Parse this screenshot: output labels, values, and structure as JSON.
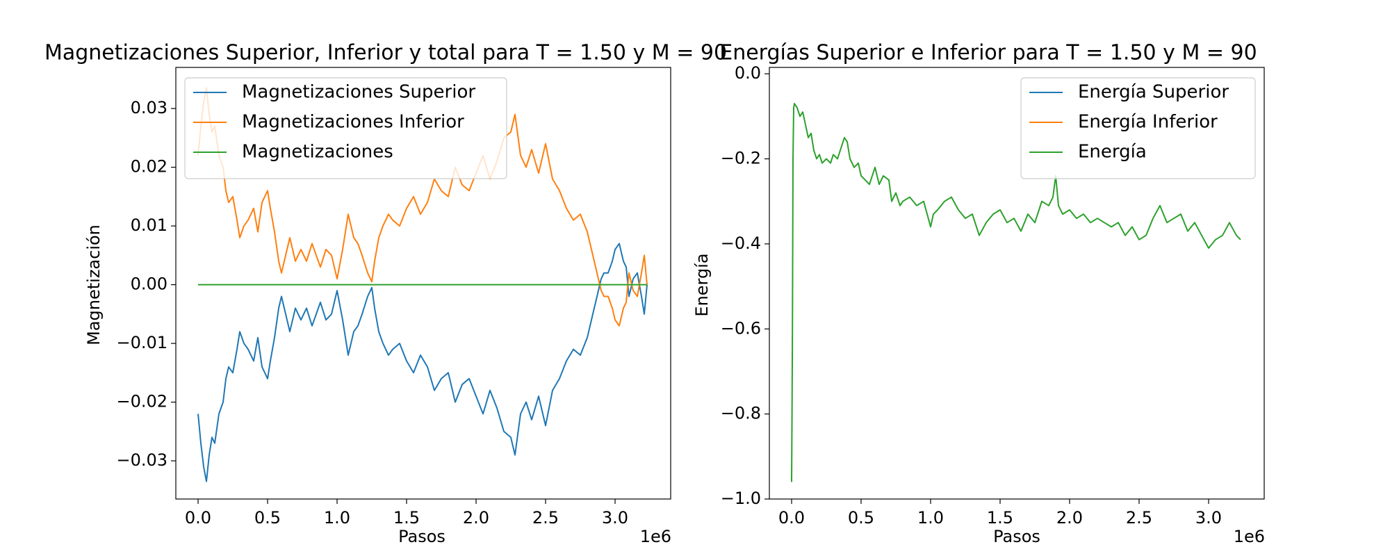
{
  "chart_data": [
    {
      "type": "line",
      "title": "Magnetizaciones Superior, Inferior y total para T = 1.50 y M = 90",
      "xlabel": "Pasos",
      "ylabel": "Magnetización",
      "x_offset_label": "1e6",
      "xlim": [
        -0.16,
        3.4
      ],
      "ylim": [
        -0.0365,
        0.037
      ],
      "x_ticks": [
        0.0,
        0.5,
        1.0,
        1.5,
        2.0,
        2.5,
        3.0
      ],
      "x_tick_labels": [
        "0.0",
        "0.5",
        "1.0",
        "1.5",
        "2.0",
        "2.5",
        "3.0"
      ],
      "y_ticks": [
        -0.03,
        -0.02,
        -0.01,
        0.0,
        0.01,
        0.02,
        0.03
      ],
      "y_tick_labels": [
        "−0.03",
        "−0.02",
        "−0.01",
        "0.00",
        "0.01",
        "0.02",
        "0.03"
      ],
      "grid": false,
      "legend_position": "top-left",
      "series": [
        {
          "name": "Magnetizaciones Superior",
          "color": "#1f77b4",
          "x": [
            0.0,
            0.02,
            0.04,
            0.06,
            0.08,
            0.1,
            0.12,
            0.15,
            0.18,
            0.2,
            0.22,
            0.25,
            0.28,
            0.3,
            0.33,
            0.36,
            0.4,
            0.43,
            0.46,
            0.5,
            0.52,
            0.55,
            0.58,
            0.6,
            0.63,
            0.66,
            0.7,
            0.74,
            0.78,
            0.82,
            0.85,
            0.88,
            0.92,
            0.96,
            1.0,
            1.04,
            1.08,
            1.12,
            1.15,
            1.18,
            1.22,
            1.25,
            1.27,
            1.3,
            1.33,
            1.37,
            1.4,
            1.45,
            1.5,
            1.55,
            1.6,
            1.65,
            1.7,
            1.75,
            1.8,
            1.85,
            1.9,
            1.95,
            2.0,
            2.05,
            2.1,
            2.15,
            2.2,
            2.25,
            2.28,
            2.32,
            2.36,
            2.4,
            2.45,
            2.5,
            2.55,
            2.6,
            2.65,
            2.7,
            2.75,
            2.8,
            2.85,
            2.88,
            2.9,
            2.92,
            2.95,
            2.98,
            3.0,
            3.03,
            3.06,
            3.08,
            3.1,
            3.13,
            3.16,
            3.19,
            3.21,
            3.23
          ],
          "y": [
            -0.022,
            -0.027,
            -0.031,
            -0.0335,
            -0.029,
            -0.026,
            -0.027,
            -0.022,
            -0.02,
            -0.016,
            -0.014,
            -0.015,
            -0.011,
            -0.008,
            -0.01,
            -0.011,
            -0.013,
            -0.009,
            -0.014,
            -0.016,
            -0.013,
            -0.009,
            -0.004,
            -0.002,
            -0.005,
            -0.008,
            -0.004,
            -0.006,
            -0.004,
            -0.007,
            -0.005,
            -0.003,
            -0.006,
            -0.005,
            -0.001,
            -0.006,
            -0.012,
            -0.008,
            -0.007,
            -0.005,
            -0.002,
            -0.0005,
            -0.004,
            -0.008,
            -0.01,
            -0.012,
            -0.011,
            -0.01,
            -0.013,
            -0.015,
            -0.012,
            -0.014,
            -0.018,
            -0.016,
            -0.015,
            -0.02,
            -0.017,
            -0.016,
            -0.019,
            -0.022,
            -0.018,
            -0.021,
            -0.025,
            -0.026,
            -0.029,
            -0.022,
            -0.02,
            -0.023,
            -0.019,
            -0.024,
            -0.018,
            -0.016,
            -0.013,
            -0.011,
            -0.012,
            -0.009,
            -0.004,
            -0.001,
            0.001,
            0.002,
            0.002,
            0.004,
            0.006,
            0.007,
            0.004,
            0.003,
            -0.002,
            0.001,
            0.002,
            -0.002,
            -0.005,
            0.0
          ]
        },
        {
          "name": "Magnetizaciones Inferior",
          "color": "#ff7f0e",
          "x": [
            0.0,
            0.02,
            0.04,
            0.06,
            0.08,
            0.1,
            0.12,
            0.15,
            0.18,
            0.2,
            0.22,
            0.25,
            0.28,
            0.3,
            0.33,
            0.36,
            0.4,
            0.43,
            0.46,
            0.5,
            0.52,
            0.55,
            0.58,
            0.6,
            0.63,
            0.66,
            0.7,
            0.74,
            0.78,
            0.82,
            0.85,
            0.88,
            0.92,
            0.96,
            1.0,
            1.04,
            1.08,
            1.12,
            1.15,
            1.18,
            1.22,
            1.25,
            1.27,
            1.3,
            1.33,
            1.37,
            1.4,
            1.45,
            1.5,
            1.55,
            1.6,
            1.65,
            1.7,
            1.75,
            1.8,
            1.85,
            1.9,
            1.95,
            2.0,
            2.05,
            2.1,
            2.15,
            2.2,
            2.25,
            2.28,
            2.32,
            2.36,
            2.4,
            2.45,
            2.5,
            2.55,
            2.6,
            2.65,
            2.7,
            2.75,
            2.8,
            2.85,
            2.88,
            2.9,
            2.92,
            2.95,
            2.98,
            3.0,
            3.03,
            3.06,
            3.08,
            3.1,
            3.13,
            3.16,
            3.19,
            3.21,
            3.23
          ],
          "y": [
            0.022,
            0.027,
            0.031,
            0.0335,
            0.029,
            0.026,
            0.027,
            0.022,
            0.02,
            0.016,
            0.014,
            0.015,
            0.011,
            0.008,
            0.01,
            0.011,
            0.013,
            0.009,
            0.014,
            0.016,
            0.013,
            0.009,
            0.004,
            0.002,
            0.005,
            0.008,
            0.004,
            0.006,
            0.004,
            0.007,
            0.005,
            0.003,
            0.006,
            0.005,
            0.001,
            0.006,
            0.012,
            0.008,
            0.007,
            0.005,
            0.002,
            0.0005,
            0.004,
            0.008,
            0.01,
            0.012,
            0.011,
            0.01,
            0.013,
            0.015,
            0.012,
            0.014,
            0.018,
            0.016,
            0.015,
            0.02,
            0.017,
            0.016,
            0.019,
            0.022,
            0.018,
            0.021,
            0.025,
            0.026,
            0.029,
            0.022,
            0.02,
            0.023,
            0.019,
            0.024,
            0.018,
            0.016,
            0.013,
            0.011,
            0.012,
            0.009,
            0.004,
            0.001,
            -0.001,
            -0.002,
            -0.002,
            -0.004,
            -0.006,
            -0.007,
            -0.004,
            -0.003,
            0.002,
            -0.001,
            -0.002,
            0.002,
            0.005,
            0.0
          ]
        },
        {
          "name": "Magnetizaciones",
          "color": "#2ca02c",
          "x": [
            0.0,
            3.23
          ],
          "y": [
            0.0,
            0.0
          ]
        }
      ]
    },
    {
      "type": "line",
      "title": "Energías Superior e Inferior para T = 1.50 y M = 90",
      "xlabel": "Pasos",
      "ylabel": "Energía",
      "x_offset_label": "1e6",
      "xlim": [
        -0.16,
        3.4
      ],
      "ylim": [
        -1.0,
        0.015
      ],
      "x_ticks": [
        0.0,
        0.5,
        1.0,
        1.5,
        2.0,
        2.5,
        3.0
      ],
      "x_tick_labels": [
        "0.0",
        "0.5",
        "1.0",
        "1.5",
        "2.0",
        "2.5",
        "3.0"
      ],
      "y_ticks": [
        -1.0,
        -0.8,
        -0.6,
        -0.4,
        -0.2,
        0.0
      ],
      "y_tick_labels": [
        "−1.0",
        "−0.8",
        "−0.6",
        "−0.4",
        "−0.2",
        "0.0"
      ],
      "grid": false,
      "legend_position": "top-right",
      "series": [
        {
          "name": "Energía Superior",
          "color": "#1f77b4",
          "x": [],
          "y": []
        },
        {
          "name": "Energía Inferior",
          "color": "#ff7f0e",
          "x": [],
          "y": []
        },
        {
          "name": "Energía",
          "color": "#2ca02c",
          "x": [
            0.0,
            0.003,
            0.006,
            0.008,
            0.01,
            0.015,
            0.02,
            0.04,
            0.06,
            0.08,
            0.1,
            0.12,
            0.14,
            0.16,
            0.18,
            0.2,
            0.22,
            0.25,
            0.28,
            0.3,
            0.33,
            0.36,
            0.38,
            0.4,
            0.42,
            0.45,
            0.48,
            0.5,
            0.53,
            0.56,
            0.58,
            0.6,
            0.63,
            0.66,
            0.7,
            0.72,
            0.75,
            0.78,
            0.8,
            0.85,
            0.9,
            0.95,
            1.0,
            1.02,
            1.05,
            1.1,
            1.15,
            1.2,
            1.25,
            1.3,
            1.35,
            1.4,
            1.45,
            1.5,
            1.55,
            1.6,
            1.65,
            1.7,
            1.75,
            1.8,
            1.85,
            1.88,
            1.9,
            1.92,
            1.95,
            2.0,
            2.05,
            2.1,
            2.15,
            2.2,
            2.25,
            2.3,
            2.35,
            2.4,
            2.45,
            2.5,
            2.55,
            2.6,
            2.65,
            2.7,
            2.75,
            2.8,
            2.85,
            2.9,
            2.95,
            3.0,
            3.05,
            3.1,
            3.15,
            3.2,
            3.23
          ],
          "y": [
            -0.96,
            -0.8,
            -0.6,
            -0.4,
            -0.2,
            -0.08,
            -0.07,
            -0.08,
            -0.1,
            -0.09,
            -0.12,
            -0.15,
            -0.14,
            -0.18,
            -0.2,
            -0.19,
            -0.21,
            -0.2,
            -0.21,
            -0.19,
            -0.2,
            -0.17,
            -0.15,
            -0.16,
            -0.2,
            -0.22,
            -0.21,
            -0.24,
            -0.25,
            -0.26,
            -0.24,
            -0.22,
            -0.26,
            -0.24,
            -0.25,
            -0.3,
            -0.28,
            -0.31,
            -0.3,
            -0.29,
            -0.31,
            -0.3,
            -0.36,
            -0.33,
            -0.32,
            -0.3,
            -0.29,
            -0.32,
            -0.34,
            -0.33,
            -0.38,
            -0.35,
            -0.33,
            -0.32,
            -0.35,
            -0.34,
            -0.37,
            -0.33,
            -0.35,
            -0.3,
            -0.31,
            -0.29,
            -0.24,
            -0.31,
            -0.33,
            -0.32,
            -0.34,
            -0.33,
            -0.35,
            -0.34,
            -0.35,
            -0.36,
            -0.35,
            -0.38,
            -0.36,
            -0.39,
            -0.38,
            -0.34,
            -0.31,
            -0.35,
            -0.34,
            -0.33,
            -0.37,
            -0.35,
            -0.38,
            -0.41,
            -0.39,
            -0.38,
            -0.35,
            -0.38,
            -0.39
          ]
        }
      ]
    }
  ]
}
